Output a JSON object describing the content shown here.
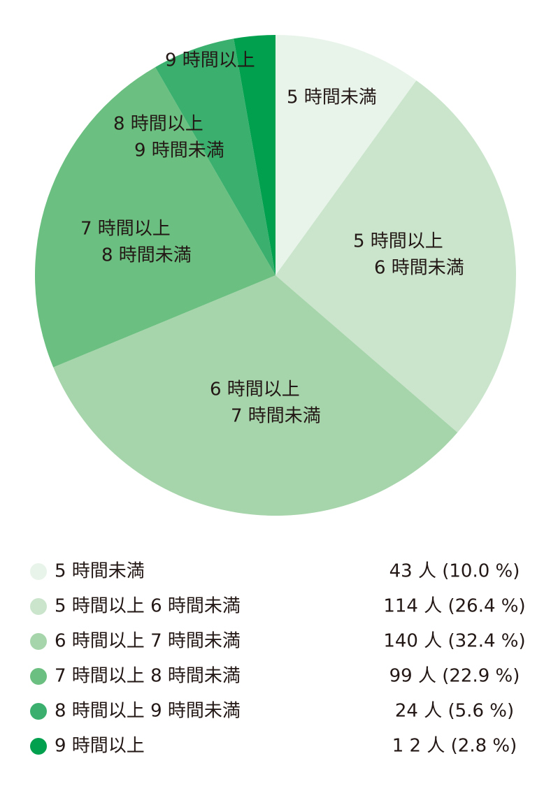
{
  "chart_data": {
    "type": "pie",
    "categories": [
      "5 時間未満",
      "5 時間以上 6 時間未満",
      "6 時間以上 7 時間未満",
      "7 時間以上 8 時間未満",
      "8 時間以上 9 時間未満",
      "9 時間以上"
    ],
    "slice_labels": [
      [
        "5 時間未満"
      ],
      [
        "5 時間以上",
        "6 時間未満"
      ],
      [
        "6 時間以上",
        "7 時間未満"
      ],
      [
        "7 時間以上",
        "8 時間未満"
      ],
      [
        "8 時間以上",
        "9 時間未満"
      ],
      [
        "9 時間以上"
      ]
    ],
    "values": [
      43,
      114,
      140,
      99,
      24,
      12
    ],
    "value_labels": [
      "43 人 (10.0 %)",
      "114 人 (26.4 %)",
      "140 人 (32.4 %)",
      "99 人 (22.9 %)",
      "24 人 (5.6 %)",
      "1 2 人 (2.8 %)"
    ],
    "colors": [
      "#e8f4ea",
      "#cae5cc",
      "#a7d5ab",
      "#6bbf80",
      "#3bb06e",
      "#00a04f"
    ]
  }
}
